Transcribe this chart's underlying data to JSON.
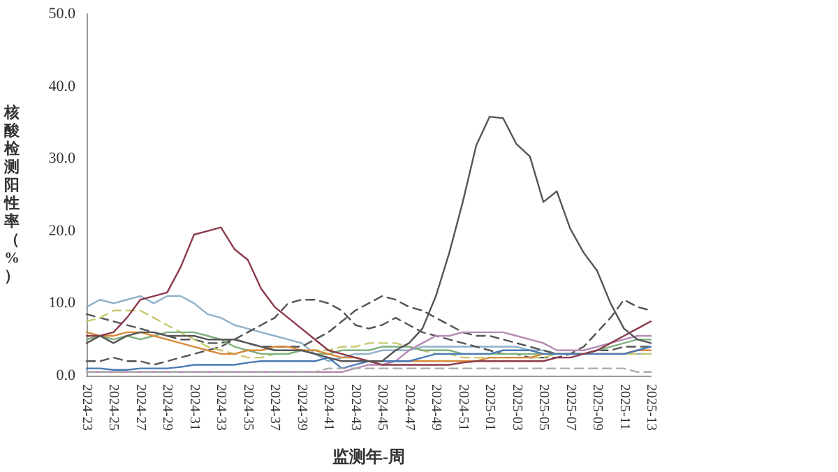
{
  "chart_data": {
    "type": "line",
    "xlabel": "监测年-周",
    "ylabel": "核酸检测阳性率（%）",
    "categories": [
      "2024-23",
      null,
      "2024-25",
      null,
      "2024-27",
      null,
      "2024-29",
      null,
      "2024-31",
      null,
      "2024-33",
      null,
      "2024-35",
      null,
      "2024-37",
      null,
      "2024-39",
      null,
      "2024-41",
      null,
      "2024-43",
      null,
      "2024-45",
      null,
      "2024-47",
      null,
      "2024-49",
      null,
      "2024-51",
      null,
      "2025-01",
      null,
      "2025-03",
      null,
      "2025-05",
      null,
      "2025-07",
      null,
      "2025-09",
      null,
      "2025-11",
      null,
      "2025-13"
    ],
    "ylim": [
      0,
      50
    ],
    "yticks": [
      {
        "value": 0,
        "label": "0.0"
      },
      {
        "value": 10,
        "label": "10.0"
      },
      {
        "value": 20,
        "label": "20.0"
      },
      {
        "value": 30,
        "label": "30.0"
      },
      {
        "value": 40,
        "label": "40.0"
      },
      {
        "value": 50,
        "label": "50.0"
      }
    ],
    "grid": false,
    "marker": "none",
    "line_style": "solid",
    "series": [
      {
        "color": "#8fb0c8",
        "values": [
          9.5,
          10.5,
          10,
          10.5,
          11,
          10,
          11,
          11,
          10,
          8.5,
          8,
          7,
          6.5,
          6,
          5.5,
          5,
          4.5,
          3,
          2,
          2.5,
          3,
          3,
          3.5,
          3.5,
          3.5,
          4,
          4,
          4,
          4,
          4,
          4,
          4,
          4,
          3.5,
          3.5,
          3,
          3,
          3,
          3,
          3,
          3,
          3,
          3
        ]
      },
      {
        "color": "#555555",
        "line_style": "dashed",
        "values": [
          2,
          2,
          2.5,
          2,
          2,
          1.5,
          2,
          2.5,
          3,
          3.5,
          4,
          5,
          6,
          7,
          8,
          10,
          10.5,
          10.5,
          10,
          9,
          7,
          6.5,
          7,
          8,
          7,
          6,
          5.5,
          5,
          4.5,
          4,
          3.5,
          3,
          3,
          2.5,
          2.5,
          2.5,
          3,
          4,
          6,
          8,
          10.5,
          9.5,
          9
        ]
      },
      {
        "color": "#555555",
        "line_style": "dashed",
        "values": [
          8.5,
          8,
          7.5,
          7,
          6.5,
          6,
          5.5,
          5,
          5,
          4.5,
          4.5,
          5,
          4.5,
          4,
          4,
          4,
          4,
          5,
          6,
          7.5,
          9,
          10,
          11,
          10.5,
          9.5,
          9,
          8,
          7,
          6,
          5.5,
          5.5,
          5,
          4.5,
          4,
          3.5,
          3,
          3,
          3,
          3.5,
          3.5,
          4,
          4,
          4
        ]
      },
      {
        "color": "#c8c870",
        "line_style": "dashed",
        "values": [
          7.5,
          8,
          9,
          9,
          9,
          8,
          7,
          6,
          5,
          4,
          3.5,
          3,
          2.5,
          2.5,
          3,
          3,
          3.5,
          3.5,
          3.5,
          4,
          4,
          4.5,
          4.5,
          4.5,
          4,
          3.5,
          3,
          3,
          2.5,
          2.5,
          2.5,
          2.5,
          2.5,
          2.5,
          2.5,
          3,
          3,
          3,
          3,
          3,
          3,
          3,
          3
        ]
      },
      {
        "color": "#7fb07f",
        "values": [
          5,
          5.5,
          5,
          5.5,
          5,
          5.5,
          6,
          6,
          6,
          5.5,
          5,
          4,
          3.5,
          3,
          3,
          3,
          3.5,
          3,
          3,
          3.5,
          3.5,
          3.5,
          4,
          4,
          4,
          3.5,
          3.5,
          3.5,
          3,
          3,
          3,
          3,
          3,
          3,
          3,
          3,
          3,
          3,
          3.5,
          4,
          4.5,
          5,
          5
        ]
      },
      {
        "color": "#d9893a",
        "values": [
          6,
          5.5,
          5.5,
          6,
          6,
          5.5,
          5,
          4.5,
          4,
          3.5,
          3,
          3,
          3.5,
          3.5,
          4,
          4,
          3.5,
          3.5,
          3,
          2.5,
          2.5,
          2,
          2,
          2,
          2,
          2,
          2,
          2,
          2,
          2,
          2.5,
          2.5,
          2.5,
          2.5,
          3,
          3,
          3,
          3,
          3,
          3,
          3,
          3.5,
          3.5
        ]
      },
      {
        "color": "#b58ab5",
        "values": [
          0.5,
          0.5,
          0.5,
          0.5,
          0.5,
          0.5,
          0.5,
          0.5,
          0.5,
          0.5,
          0.5,
          0.5,
          0.5,
          0.5,
          0.5,
          0.5,
          0.5,
          0.5,
          0.5,
          0.5,
          1,
          1.5,
          1.5,
          2,
          3.5,
          4.5,
          5.5,
          5.5,
          6,
          6,
          6,
          6,
          5.5,
          5,
          4.5,
          3.5,
          3.5,
          3.5,
          4,
          4.5,
          5,
          5.5,
          5.5
        ]
      },
      {
        "color": "#4a7ab5",
        "values": [
          1,
          1,
          0.8,
          0.8,
          1,
          1,
          1,
          1.2,
          1.5,
          1.5,
          1.5,
          1.5,
          1.8,
          2,
          2,
          2,
          2,
          2,
          2.5,
          1,
          1.5,
          2,
          2,
          2,
          2,
          2.5,
          3,
          3,
          3,
          3,
          3,
          3.5,
          3.5,
          3.5,
          3,
          3,
          3,
          3,
          3,
          3,
          3,
          3.5,
          4
        ]
      },
      {
        "color": "#aaaaaa",
        "line_style": "dashed",
        "values": [
          0.5,
          0.5,
          0.5,
          0.5,
          0.5,
          0.5,
          0.5,
          0.5,
          0.5,
          0.5,
          0.5,
          0.5,
          0.5,
          0.5,
          0.5,
          0.5,
          0.5,
          0.5,
          1,
          1,
          1,
          1,
          1,
          1,
          1,
          1,
          1,
          1,
          1,
          1,
          1,
          1,
          1,
          1,
          1,
          1,
          1,
          1,
          1,
          1,
          1,
          0.5,
          0.5
        ]
      },
      {
        "color": "#8b3a4a",
        "values": [
          5.5,
          5.5,
          6,
          8,
          10.5,
          11,
          11.5,
          15,
          19.5,
          20,
          20.5,
          17.5,
          16,
          12,
          9.5,
          8,
          6.5,
          5,
          3.5,
          3,
          2.5,
          2,
          1.5,
          1.5,
          1.5,
          1.5,
          1.5,
          1.5,
          1.8,
          2,
          2,
          2,
          2,
          2,
          2,
          2.5,
          2.5,
          3,
          3.5,
          4.5,
          5.5,
          6.5,
          7.5
        ]
      },
      {
        "color": "#555555",
        "values": [
          4.5,
          5.5,
          4.5,
          5.5,
          6,
          6,
          5.5,
          5.5,
          5.5,
          5,
          5,
          5,
          4.5,
          4,
          3.5,
          3.5,
          3.5,
          3,
          2.5,
          2,
          2,
          2,
          2,
          3.5,
          4.5,
          6.5,
          11,
          17,
          24,
          31.8,
          35.8,
          35.6,
          32,
          30.3,
          24,
          25.5,
          20.3,
          17,
          14.5,
          10,
          6.5,
          5,
          4.5
        ]
      }
    ]
  }
}
